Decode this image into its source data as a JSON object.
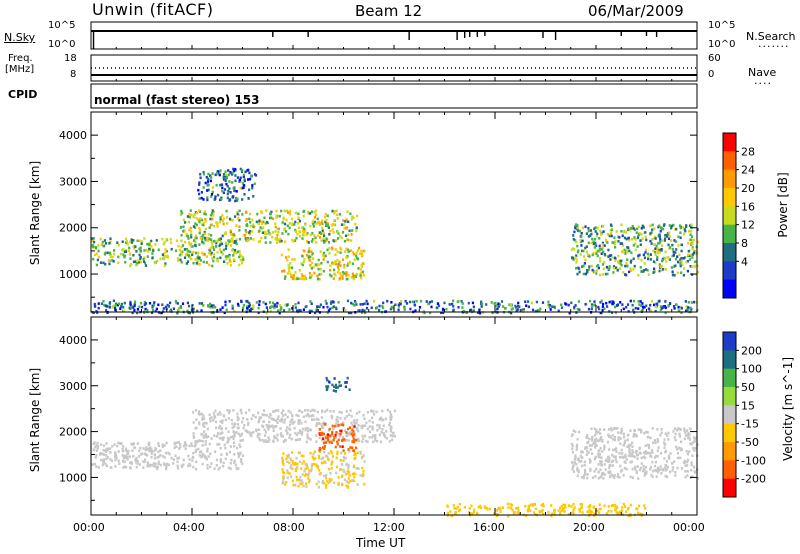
{
  "header": {
    "station": "Unwin (fitACF)",
    "beam": "Beam 12",
    "date": "06/Mar/2009"
  },
  "strip_nsky": {
    "left_label": "N.Sky",
    "left_ticks": [
      "10^5",
      "10^0"
    ],
    "right_ticks": [
      "10^5",
      "10^0"
    ],
    "right_label": "N.Search",
    "right_legend": "......."
  },
  "strip_freq": {
    "left_label_1": "Freq.",
    "left_label_2": "[MHz]",
    "left_ticks": [
      "18",
      "8"
    ],
    "right_ticks": [
      "60",
      "0"
    ],
    "right_label": "Nave",
    "right_legend": "...."
  },
  "cpid": {
    "label": "CPID",
    "text": "normal (fast stereo) 153"
  },
  "panels": {
    "y_label": "Slant Range [km]",
    "y_ticks": [
      "4000",
      "3000",
      "2000",
      "1000"
    ],
    "x_ticks": [
      "00:00",
      "04:00",
      "08:00",
      "12:00",
      "16:00",
      "20:00",
      "00:00"
    ],
    "x_label": "Time UT"
  },
  "colorbar_power": {
    "label": "Power [dB]",
    "ticks": [
      "28",
      "24",
      "20",
      "16",
      "12",
      "8",
      "4"
    ],
    "colors": [
      "#ff0000",
      "#ff6000",
      "#ff9a00",
      "#ffc800",
      "#c8dc1e",
      "#46b446",
      "#1e6e82",
      "#1e3cc8",
      "#0000ff"
    ]
  },
  "colorbar_velocity": {
    "label": "Velocity [m s^-1]",
    "ticks": [
      "200",
      "100",
      "50",
      "15",
      "-15",
      "-50",
      "-100",
      "-200"
    ],
    "colors": [
      "#1e3cc8",
      "#1e6e82",
      "#46b446",
      "#96dc3c",
      "#c8c8c8",
      "#ffc800",
      "#ff9a00",
      "#ff6000",
      "#ff0000"
    ]
  },
  "chart_data": [
    {
      "type": "heatmap",
      "title": "Power [dB]",
      "xlabel": "Time UT",
      "ylabel": "Slant Range [km]",
      "xlim": [
        0,
        24
      ],
      "ylim": [
        180,
        4500
      ],
      "colorbar_range": [
        0,
        30
      ],
      "regions": [
        {
          "t0": 0.0,
          "t1": 6.0,
          "r0": 1200,
          "r1": 1800,
          "level": 12
        },
        {
          "t0": 3.5,
          "t1": 10.5,
          "r0": 1700,
          "r1": 2400,
          "level": 14
        },
        {
          "t0": 7.5,
          "t1": 10.8,
          "r0": 900,
          "r1": 1600,
          "level": 16
        },
        {
          "t0": 4.2,
          "t1": 6.5,
          "r0": 2600,
          "r1": 3300,
          "level": 6
        },
        {
          "t0": 19.0,
          "t1": 24.0,
          "r0": 1000,
          "r1": 2100,
          "level": 10
        },
        {
          "t0": 0.0,
          "t1": 24.0,
          "r0": 180,
          "r1": 450,
          "level": 6
        }
      ]
    },
    {
      "type": "heatmap",
      "title": "Velocity [m s^-1]",
      "xlabel": "Time UT",
      "ylabel": "Slant Range [km]",
      "xlim": [
        0,
        24
      ],
      "ylim": [
        180,
        4500
      ],
      "colorbar_range": [
        -250,
        250
      ],
      "regions": [
        {
          "t0": 0.0,
          "t1": 6.0,
          "r0": 1200,
          "r1": 1800,
          "velocity": 0
        },
        {
          "t0": 4.0,
          "t1": 12.0,
          "r0": 1800,
          "r1": 2500,
          "velocity": 0
        },
        {
          "t0": 7.5,
          "t1": 10.8,
          "r0": 800,
          "r1": 1600,
          "velocity": -40
        },
        {
          "t0": 9.0,
          "t1": 10.5,
          "r0": 1600,
          "r1": 2200,
          "velocity": -200
        },
        {
          "t0": 9.2,
          "t1": 10.2,
          "r0": 2900,
          "r1": 3200,
          "velocity": 200
        },
        {
          "t0": 19.0,
          "t1": 24.0,
          "r0": 1000,
          "r1": 2100,
          "velocity": 0
        },
        {
          "t0": 14.0,
          "t1": 22.0,
          "r0": 180,
          "r1": 450,
          "velocity": -60
        }
      ]
    }
  ]
}
